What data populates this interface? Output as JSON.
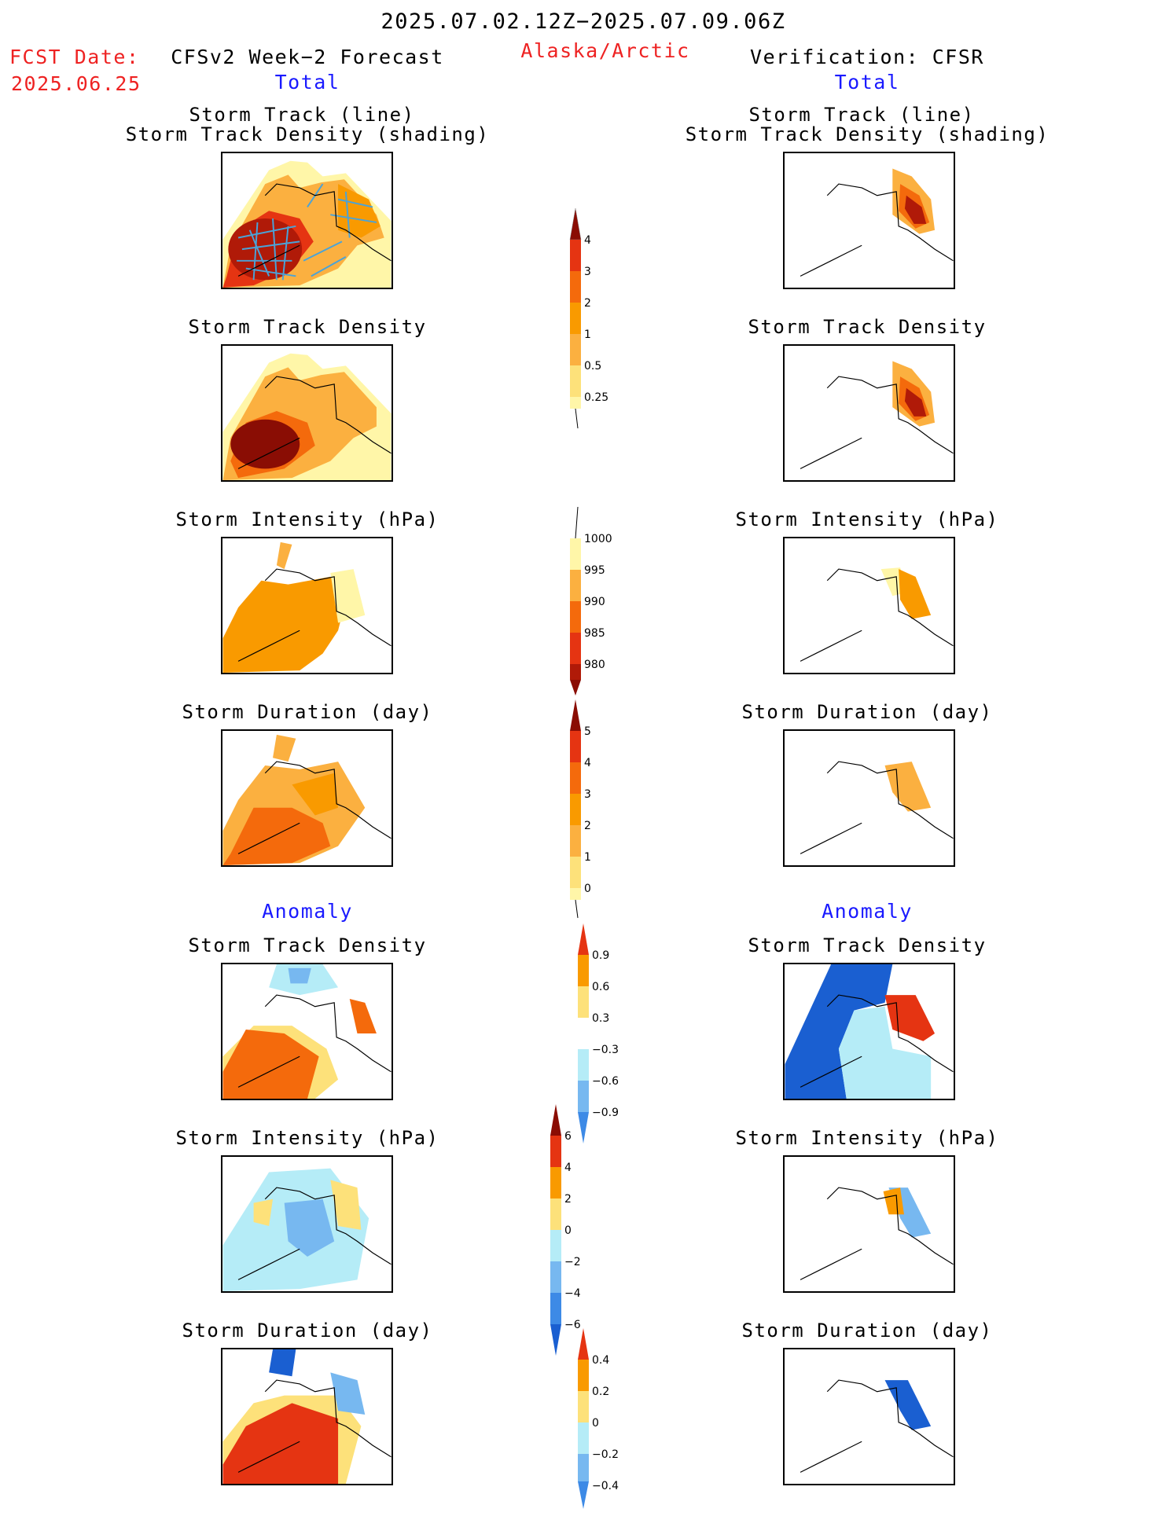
{
  "header": {
    "period": "2025.07.02.12Z−2025.07.09.06Z",
    "fcst_label": "FCST Date:",
    "fcst_date": "2025.06.25",
    "left_title": "CFSv2 Week−2 Forecast",
    "region": "Alaska/Arctic",
    "right_title": "Verification: CFSR"
  },
  "sections": {
    "total_label": "Total",
    "anomaly_label": "Anomaly"
  },
  "panels": {
    "track_line_title_1": "Storm Track (line)",
    "track_line_title_2": "Storm Track Density (shading)",
    "density_title": "Storm Track Density",
    "intensity_title": "Storm Intensity (hPa)",
    "duration_title": "Storm Duration (day)"
  },
  "colorbars": {
    "density_total": [
      "4",
      "3",
      "2",
      "1",
      "0.5",
      "0.25"
    ],
    "intensity_total": [
      "1000",
      "995",
      "990",
      "985",
      "980"
    ],
    "duration_total": [
      "5",
      "4",
      "3",
      "2",
      "1",
      "0"
    ],
    "density_anom": [
      "0.9",
      "0.6",
      "0.3",
      "−0.3",
      "−0.6",
      "−0.9"
    ],
    "intensity_anom": [
      "6",
      "4",
      "2",
      "0",
      "−2",
      "−4",
      "−6"
    ],
    "duration_anom": [
      "0.4",
      "0.2",
      "0",
      "−0.2",
      "−0.4"
    ]
  },
  "colors": {
    "pale_yellow": "#fff6a8",
    "light_yellow": "#fde17a",
    "light_orange": "#fbb040",
    "orange": "#f99a00",
    "dark_orange": "#f46a0c",
    "red": "#e53412",
    "dark_red": "#b01a08",
    "deep_red": "#8a0d04",
    "light_blue": "#b5ecf7",
    "mid_blue": "#77b8f0",
    "blue": "#3d8ae6",
    "dark_blue": "#1a5fd1",
    "track_line": "#4aa3d8"
  }
}
